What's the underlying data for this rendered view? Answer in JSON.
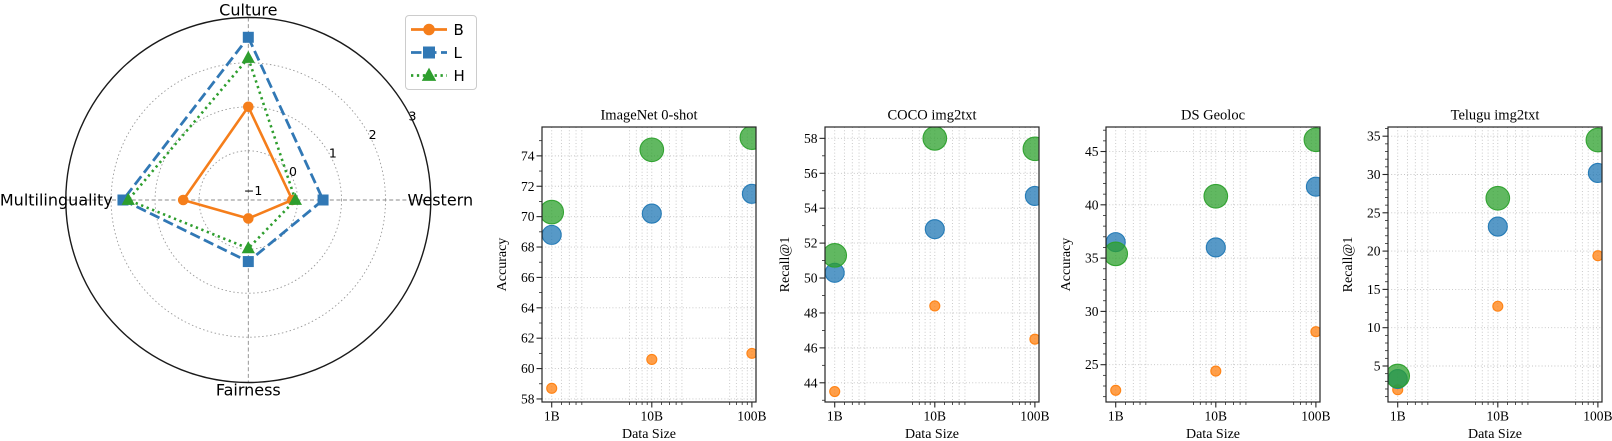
{
  "figure": {
    "background": "#ffffff",
    "legend": {
      "position": "upper-right-of-radar",
      "entries": [
        {
          "label": "B",
          "line": "solid",
          "marker": "circle",
          "color": "#f57e1b"
        },
        {
          "label": "L",
          "line": "dashed",
          "marker": "square",
          "color": "#3178b5"
        },
        {
          "label": "H",
          "line": "dotted",
          "marker": "triangle",
          "color": "#2e9e2e"
        }
      ]
    }
  },
  "style": {
    "scatter_colors": {
      "B": "#ff7f0e",
      "L": "#1f77b4",
      "H": "#2ca02c"
    },
    "scatter_marker_radii": {
      "B": 5,
      "L": 9.5,
      "H": 11.8
    },
    "scatter_fill_opacity": 0.75,
    "grid_color": "#c4c4c4",
    "axis_color": "#262626",
    "spoke_color": "#8a8a8a"
  },
  "chart_data": [
    {
      "type": "radar",
      "axes": [
        "Culture",
        "Western",
        "Fairness",
        "Multilinguality"
      ],
      "r_ticks": [
        -1,
        0,
        1,
        2,
        3
      ],
      "r_tick_labels": [
        "−1",
        "0",
        "1",
        "2",
        "3"
      ],
      "r_range": [
        -1.12,
        3.03
      ],
      "grid_circles": [
        0,
        1,
        2
      ],
      "legend_position": "upper right",
      "series": [
        {
          "name": "B",
          "color": "#f57e1b",
          "line_style": "solid",
          "marker": "circle",
          "values": [
            1.0,
            -0.12,
            -0.7,
            0.36
          ]
        },
        {
          "name": "L",
          "color": "#3178b5",
          "line_style": "dashed",
          "marker": "square",
          "values": [
            2.58,
            0.58,
            0.28,
            1.73
          ]
        },
        {
          "name": "H",
          "color": "#2e9e2e",
          "line_style": "dotted",
          "marker": "triangle",
          "values": [
            2.11,
            -0.05,
            -0.02,
            1.61
          ]
        }
      ]
    },
    {
      "type": "scatter",
      "title": "ImageNet 0-shot",
      "xlabel": "Data Size",
      "ylabel": "Accuracy",
      "x_tick_labels": [
        "1B",
        "10B",
        "100B"
      ],
      "x_log10": [
        9,
        10,
        11
      ],
      "xlim_log10": [
        8.903,
        11.041
      ],
      "yticks": [
        58,
        60,
        62,
        64,
        66,
        68,
        70,
        72,
        74
      ],
      "ylim": [
        57.8,
        75.9
      ],
      "y_minor_step": 1,
      "series": [
        {
          "name": "B",
          "values": [
            58.7,
            60.6,
            61.0
          ]
        },
        {
          "name": "L",
          "values": [
            68.8,
            70.2,
            71.5
          ]
        },
        {
          "name": "H",
          "values": [
            70.3,
            74.4,
            75.2
          ]
        }
      ]
    },
    {
      "type": "scatter",
      "title": "COCO img2txt",
      "xlabel": "Data Size",
      "ylabel": "Recall@1",
      "x_tick_labels": [
        "1B",
        "10B",
        "100B"
      ],
      "x_log10": [
        9,
        10,
        11
      ],
      "xlim_log10": [
        8.903,
        11.041
      ],
      "yticks": [
        44,
        46,
        48,
        50,
        52,
        54,
        56,
        58
      ],
      "ylim": [
        42.9,
        58.65
      ],
      "y_minor_step": 1,
      "series": [
        {
          "name": "B",
          "values": [
            43.5,
            48.4,
            46.5
          ]
        },
        {
          "name": "L",
          "values": [
            50.3,
            52.8,
            54.7
          ]
        },
        {
          "name": "H",
          "values": [
            51.3,
            58.0,
            57.4
          ]
        }
      ]
    },
    {
      "type": "scatter",
      "title": "DS Geoloc",
      "xlabel": "Data Size",
      "ylabel": "Accuracy",
      "x_tick_labels": [
        "1B",
        "10B",
        "100B"
      ],
      "x_log10": [
        9,
        10,
        11
      ],
      "xlim_log10": [
        8.903,
        11.041
      ],
      "yticks": [
        25,
        30,
        35,
        40,
        45
      ],
      "ylim": [
        21.5,
        47.3
      ],
      "y_minor_step": 1,
      "series": [
        {
          "name": "B",
          "values": [
            22.6,
            24.4,
            28.1
          ]
        },
        {
          "name": "L",
          "values": [
            36.5,
            36.0,
            41.7
          ]
        },
        {
          "name": "H",
          "values": [
            35.4,
            40.8,
            46.1
          ]
        }
      ]
    },
    {
      "type": "scatter",
      "title": "Telugu img2txt",
      "xlabel": "Data Size",
      "ylabel": "Recall@1",
      "x_tick_labels": [
        "1B",
        "10B",
        "100B"
      ],
      "x_log10": [
        9,
        10,
        11
      ],
      "xlim_log10": [
        8.903,
        11.041
      ],
      "yticks": [
        5,
        10,
        15,
        20,
        25,
        30,
        35
      ],
      "ylim": [
        0.3,
        36.2
      ],
      "y_minor_step": 1,
      "series": [
        {
          "name": "B",
          "values": [
            1.9,
            12.8,
            19.4
          ]
        },
        {
          "name": "L",
          "values": [
            3.3,
            23.2,
            30.2
          ]
        },
        {
          "name": "H",
          "values": [
            3.7,
            26.9,
            34.5
          ]
        }
      ]
    }
  ]
}
